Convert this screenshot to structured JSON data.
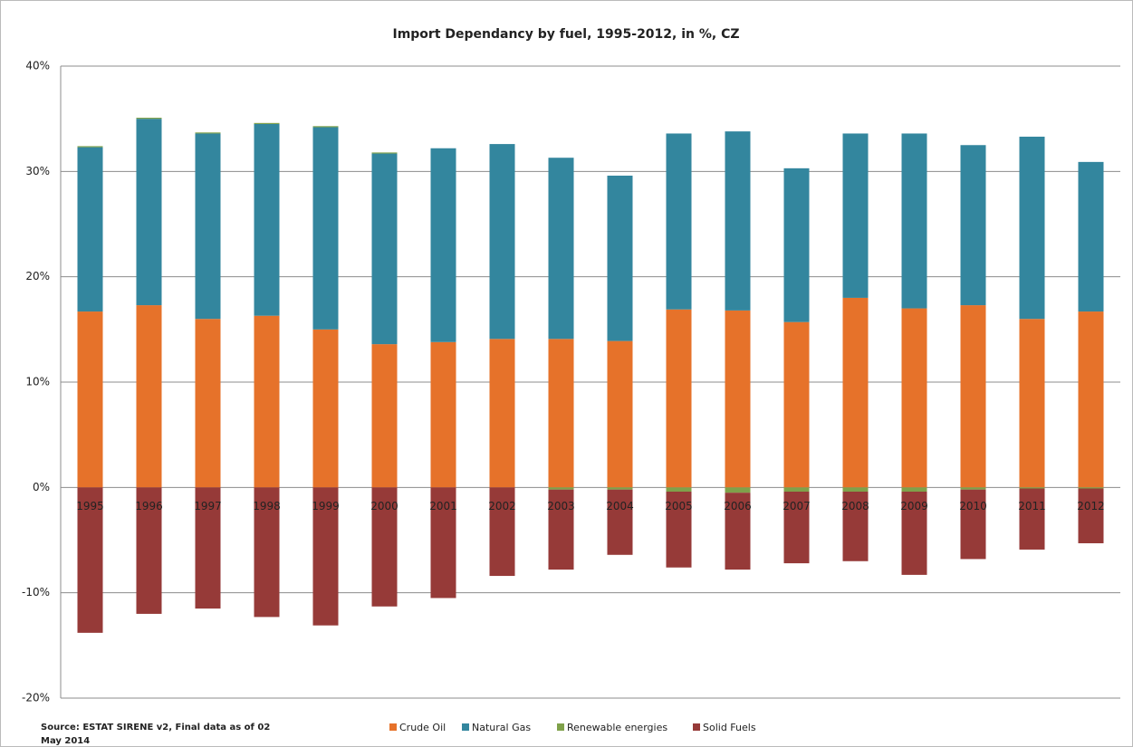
{
  "chart_data": {
    "type": "stacked_bar",
    "title": "Import Dependancy by fuel, 1995-2012, in %, CZ",
    "source": [
      "Source: ESTAT SIRENE v2, Final data as of 02",
      "May 2014"
    ],
    "categories": [
      "1995",
      "1996",
      "1997",
      "1998",
      "1999",
      "2000",
      "2001",
      "2002",
      "2003",
      "2004",
      "2005",
      "2006",
      "2007",
      "2008",
      "2009",
      "2010",
      "2011",
      "2012"
    ],
    "series": [
      {
        "name": "Crude Oil",
        "color": "#e6722a",
        "values": [
          16.7,
          17.3,
          16.0,
          16.3,
          15.0,
          13.6,
          13.8,
          14.1,
          14.1,
          13.9,
          16.9,
          16.8,
          15.7,
          18.0,
          17.0,
          17.3,
          16.0,
          16.7
        ]
      },
      {
        "name": "Natural Gas",
        "color": "#33869e",
        "values": [
          15.6,
          17.7,
          17.6,
          18.2,
          19.2,
          18.1,
          18.4,
          18.5,
          17.2,
          15.7,
          16.7,
          17.0,
          14.6,
          15.6,
          16.6,
          15.2,
          17.3,
          14.2
        ]
      },
      {
        "name": "Renewable energies",
        "color": "#7fa14a",
        "values": [
          0.1,
          0.1,
          0.1,
          0.1,
          0.1,
          0.1,
          0.0,
          0.0,
          -0.2,
          -0.2,
          -0.4,
          -0.5,
          -0.4,
          -0.4,
          -0.4,
          -0.2,
          -0.1,
          -0.1
        ]
      },
      {
        "name": "Solid Fuels",
        "color": "#963a38",
        "values": [
          -13.8,
          -12.0,
          -11.5,
          -12.3,
          -13.1,
          -11.3,
          -10.5,
          -8.4,
          -7.6,
          -6.2,
          -7.2,
          -7.3,
          -6.8,
          -6.6,
          -7.9,
          -6.6,
          -5.8,
          -5.2
        ]
      }
    ],
    "ylim": [
      -20,
      40
    ],
    "yticks": [
      {
        "value": -20,
        "label": "-20%"
      },
      {
        "value": -10,
        "label": "-10%"
      },
      {
        "value": 0,
        "label": "0%"
      },
      {
        "value": 10,
        "label": "10%"
      },
      {
        "value": 20,
        "label": "20%"
      },
      {
        "value": 30,
        "label": "30%"
      },
      {
        "value": 40,
        "label": "40%"
      }
    ],
    "grid": true,
    "legend": "bottom"
  }
}
